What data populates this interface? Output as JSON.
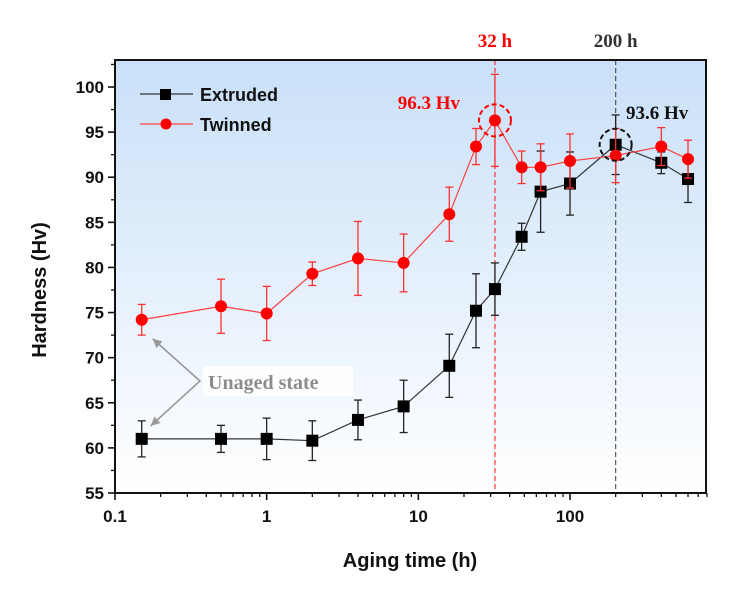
{
  "chart_data": {
    "type": "line",
    "title": "",
    "xlabel": "Aging time (h)",
    "ylabel": "Hardness (Hv)",
    "xscale": "log",
    "xlim": [
      0.1,
      800
    ],
    "ylim": [
      55,
      103
    ],
    "x_ticks": [
      0.1,
      1,
      10,
      100
    ],
    "x_tick_labels": [
      "0.1",
      "1",
      "10",
      "100"
    ],
    "y_ticks": [
      55,
      60,
      65,
      70,
      75,
      80,
      85,
      90,
      95,
      100
    ],
    "y_tick_labels": [
      "55",
      "60",
      "65",
      "70",
      "75",
      "80",
      "85",
      "90",
      "95",
      "100"
    ],
    "legend_position": "top-left",
    "background_gradient": [
      "#c9e0f8",
      "#ffffff"
    ],
    "series": [
      {
        "name": "Extruded",
        "color": "#000000",
        "marker": "square",
        "x": [
          0.15,
          0.5,
          1,
          2,
          4,
          8,
          16,
          24,
          32,
          48,
          64,
          100,
          200,
          400,
          600
        ],
        "y": [
          61.0,
          61.0,
          61.0,
          60.8,
          63.1,
          64.6,
          69.1,
          75.2,
          77.6,
          83.4,
          88.4,
          89.3,
          93.6,
          91.6,
          89.8
        ],
        "err": [
          2.0,
          1.5,
          2.3,
          2.2,
          2.2,
          2.9,
          3.5,
          4.1,
          2.9,
          1.5,
          4.5,
          3.5,
          3.3,
          1.2,
          2.6
        ]
      },
      {
        "name": "Twinned",
        "color": "#ff0000",
        "marker": "circle",
        "x": [
          0.15,
          0.5,
          1,
          2,
          4,
          8,
          16,
          24,
          32,
          48,
          64,
          100,
          200,
          400,
          600
        ],
        "y": [
          74.2,
          75.7,
          74.9,
          79.3,
          81.0,
          80.5,
          85.9,
          93.4,
          96.3,
          91.1,
          91.1,
          91.8,
          92.4,
          93.4,
          92.0
        ],
        "err": [
          1.7,
          3.0,
          3.0,
          1.3,
          4.1,
          3.2,
          3.0,
          2.0,
          5.1,
          1.8,
          2.6,
          3.0,
          3.0,
          2.1,
          2.1
        ]
      }
    ],
    "reference_lines": [
      {
        "x": 32,
        "label": "32 h",
        "color": "#ff0000",
        "style": "dashed"
      },
      {
        "x": 200,
        "label": "200 h",
        "color": "#333333",
        "style": "dashed"
      }
    ],
    "annotations": [
      {
        "text": "96.3 Hv",
        "color": "#ff0000",
        "x": 32,
        "y": 96.3,
        "circled": true
      },
      {
        "text": "93.6 Hv",
        "color": "#111111",
        "x": 200,
        "y": 93.6,
        "circled": true
      },
      {
        "text": "Unaged state",
        "color": "#8c8c8c",
        "arrows_to": [
          "Twinned@0.15",
          "Extruded@0.15"
        ]
      }
    ]
  }
}
